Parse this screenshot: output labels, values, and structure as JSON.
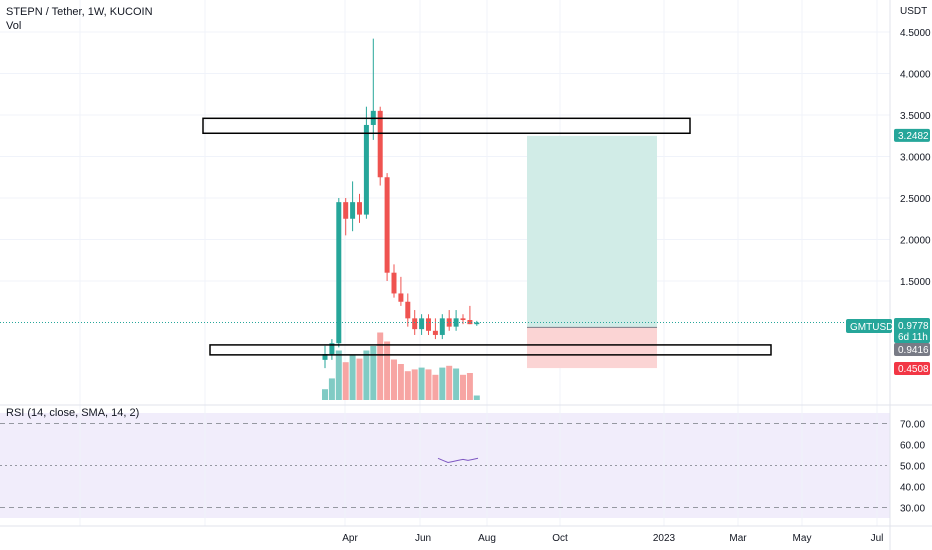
{
  "header": {
    "symbol_line": "STEPN / Tether, 1W, KUCOIN",
    "volume_label": "Vol"
  },
  "price_axis": {
    "unit": "USDT",
    "ticks": [
      "4.5000",
      "4.0000",
      "3.5000",
      "3.0000",
      "2.5000",
      "2.0000",
      "1.5000"
    ],
    "tick_values": [
      4.5,
      4.0,
      3.5,
      3.0,
      2.5,
      2.0,
      1.5
    ]
  },
  "badges": {
    "target_price": "3.2482",
    "symbol_tag": "GMTUSDT",
    "last_price": "0.9778",
    "countdown": "6d 11h",
    "entry_price": "0.9416",
    "stop_price": "0.4508"
  },
  "time_axis": {
    "labels": [
      "Apr",
      "Jun",
      "Aug",
      "Oct",
      "2023",
      "Mar",
      "May",
      "Jul"
    ]
  },
  "rsi": {
    "title": "RSI (14, close, SMA, 14, 2)",
    "ticks": [
      "70.00",
      "60.00",
      "50.00",
      "40.00",
      "30.00"
    ],
    "tick_values": [
      70,
      60,
      50,
      40,
      30
    ]
  },
  "colors": {
    "up": "#26a69a",
    "down": "#ef5350",
    "vol_up": "#80cbc4",
    "vol_down": "#f7a5a3",
    "profit_zone": "#d1ece7",
    "loss_zone": "#fbd4d4",
    "rsi_band": "#f1edfb"
  },
  "chart_data": {
    "type": "candlestick",
    "interval": "1W",
    "price_range": [
      0.0,
      4.9
    ],
    "candles": [
      {
        "week": 1,
        "open": 0.55,
        "high": 0.72,
        "low": 0.45,
        "close": 0.62
      },
      {
        "week": 2,
        "open": 0.62,
        "high": 0.8,
        "low": 0.55,
        "close": 0.75
      },
      {
        "week": 3,
        "open": 0.75,
        "high": 2.5,
        "low": 0.7,
        "close": 2.45
      },
      {
        "week": 4,
        "open": 2.45,
        "high": 2.5,
        "low": 2.05,
        "close": 2.25
      },
      {
        "week": 5,
        "open": 2.25,
        "high": 2.7,
        "low": 2.1,
        "close": 2.45
      },
      {
        "week": 6,
        "open": 2.45,
        "high": 2.55,
        "low": 2.2,
        "close": 2.3
      },
      {
        "week": 7,
        "open": 2.3,
        "high": 3.6,
        "low": 2.25,
        "close": 3.38
      },
      {
        "week": 8,
        "open": 3.38,
        "high": 4.42,
        "low": 3.2,
        "close": 3.55
      },
      {
        "week": 9,
        "open": 3.55,
        "high": 3.6,
        "low": 2.65,
        "close": 2.75
      },
      {
        "week": 10,
        "open": 2.75,
        "high": 2.8,
        "low": 1.5,
        "close": 1.6
      },
      {
        "week": 11,
        "open": 1.6,
        "high": 1.7,
        "low": 1.3,
        "close": 1.35
      },
      {
        "week": 12,
        "open": 1.35,
        "high": 1.55,
        "low": 1.2,
        "close": 1.25
      },
      {
        "week": 13,
        "open": 1.25,
        "high": 1.35,
        "low": 0.95,
        "close": 1.05
      },
      {
        "week": 14,
        "open": 1.05,
        "high": 1.15,
        "low": 0.85,
        "close": 0.92
      },
      {
        "week": 15,
        "open": 0.92,
        "high": 1.1,
        "low": 0.85,
        "close": 1.05
      },
      {
        "week": 16,
        "open": 1.05,
        "high": 1.1,
        "low": 0.85,
        "close": 0.9
      },
      {
        "week": 17,
        "open": 0.9,
        "high": 1.05,
        "low": 0.8,
        "close": 0.85
      },
      {
        "week": 18,
        "open": 0.85,
        "high": 1.1,
        "low": 0.8,
        "close": 1.05
      },
      {
        "week": 19,
        "open": 1.05,
        "high": 1.15,
        "low": 0.9,
        "close": 0.95
      },
      {
        "week": 20,
        "open": 0.95,
        "high": 1.15,
        "low": 0.9,
        "close": 1.05
      },
      {
        "week": 21,
        "open": 1.05,
        "high": 1.1,
        "low": 0.98,
        "close": 1.03
      },
      {
        "week": 22,
        "open": 1.03,
        "high": 1.2,
        "low": 0.98,
        "close": 0.98
      },
      {
        "week": 23,
        "open": 0.98,
        "high": 1.02,
        "low": 0.96,
        "close": 1.0
      }
    ],
    "volume_heights": [
      0.12,
      0.24,
      0.55,
      0.42,
      0.5,
      0.46,
      0.55,
      0.6,
      0.75,
      0.65,
      0.45,
      0.4,
      0.32,
      0.34,
      0.36,
      0.34,
      0.28,
      0.36,
      0.38,
      0.35,
      0.28,
      0.3,
      0.05
    ],
    "resistance_zone": [
      3.28,
      3.46
    ],
    "support_zone": [
      0.61,
      0.73
    ],
    "position": {
      "entry": 0.9416,
      "target": 3.2482,
      "stop": 0.4508
    },
    "rsi_range": [
      25,
      75
    ],
    "rsi_values": [
      52,
      51,
      50,
      50.5,
      51,
      51.5,
      51,
      51.5,
      52
    ]
  }
}
